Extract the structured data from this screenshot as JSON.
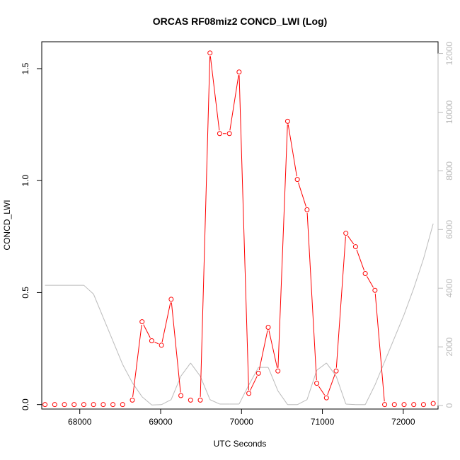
{
  "chart_data": {
    "type": "line",
    "title": "ORCAS RF08miz2 CONCD_LWI (Log)",
    "xlabel": "UTC Seconds",
    "ylabel": "CONCD_LWI",
    "xlim": [
      67530,
      72430
    ],
    "ylim": [
      -0.02,
      1.62
    ],
    "y2lim": [
      -120,
      12400
    ],
    "x_ticks": [
      68000,
      69000,
      70000,
      71000,
      72000
    ],
    "y_ticks": [
      0.0,
      0.5,
      1.0,
      1.5
    ],
    "y_tick_labels": [
      "0.0",
      "0.5",
      "1.0",
      "1.5"
    ],
    "y2_ticks": [
      0,
      2000,
      4000,
      6000,
      8000,
      10000,
      12000
    ],
    "grid": false,
    "series": [
      {
        "role": "primary",
        "color": "#ff0000",
        "markers": "open-circle",
        "x": [
          67570,
          67690,
          67810,
          67930,
          68050,
          68170,
          68290,
          68410,
          68530,
          68650,
          68770,
          68890,
          69010,
          69130,
          69250,
          69370,
          69490,
          69610,
          69730,
          69850,
          69970,
          70090,
          70210,
          70330,
          70450,
          70570,
          70690,
          70810,
          70930,
          71050,
          71170,
          71290,
          71410,
          71530,
          71650,
          71770,
          71890,
          72010,
          72130,
          72250,
          72370
        ],
        "values": [
          0.0,
          0.0,
          0.0,
          0.0,
          0.0,
          0.0,
          0.0,
          0.0,
          0.0,
          0.02,
          0.37,
          0.285,
          0.265,
          0.47,
          0.04,
          0.02,
          0.02,
          1.57,
          1.21,
          1.21,
          1.485,
          0.05,
          0.14,
          0.345,
          0.15,
          1.265,
          1.005,
          0.87,
          0.095,
          0.03,
          0.15,
          0.765,
          0.705,
          0.585,
          0.51,
          0.0,
          0.0,
          0.0,
          0.0,
          0.0,
          0.005
        ],
        "connected": [
          false,
          false,
          false,
          false,
          false,
          false,
          false,
          false,
          false,
          true,
          true,
          true,
          true,
          true,
          true,
          false,
          true,
          true,
          true,
          true,
          true,
          true,
          true,
          true,
          true,
          true,
          true,
          true,
          true,
          true,
          true,
          true,
          true,
          true,
          true,
          true,
          false,
          false,
          false,
          false,
          false
        ]
      },
      {
        "role": "secondary-axis",
        "color": "#bbbbbb",
        "x": [
          67570,
          68050,
          68170,
          68290,
          68410,
          68530,
          68650,
          68770,
          68890,
          69010,
          69130,
          69250,
          69370,
          69490,
          69610,
          69730,
          69850,
          69970,
          70090,
          70210,
          70330,
          70450,
          70570,
          70690,
          70810,
          70930,
          71050,
          71170,
          71290,
          71410,
          71530,
          71650,
          71770,
          71890,
          72010,
          72130,
          72250,
          72370
        ],
        "values": [
          4100,
          4100,
          3800,
          3000,
          2200,
          1400,
          780,
          300,
          20,
          30,
          200,
          1000,
          1450,
          1000,
          200,
          50,
          50,
          50,
          700,
          1300,
          1300,
          500,
          30,
          30,
          200,
          1200,
          1450,
          1000,
          50,
          30,
          30,
          700,
          1500,
          2300,
          3100,
          4000,
          5000,
          6200
        ]
      }
    ]
  }
}
